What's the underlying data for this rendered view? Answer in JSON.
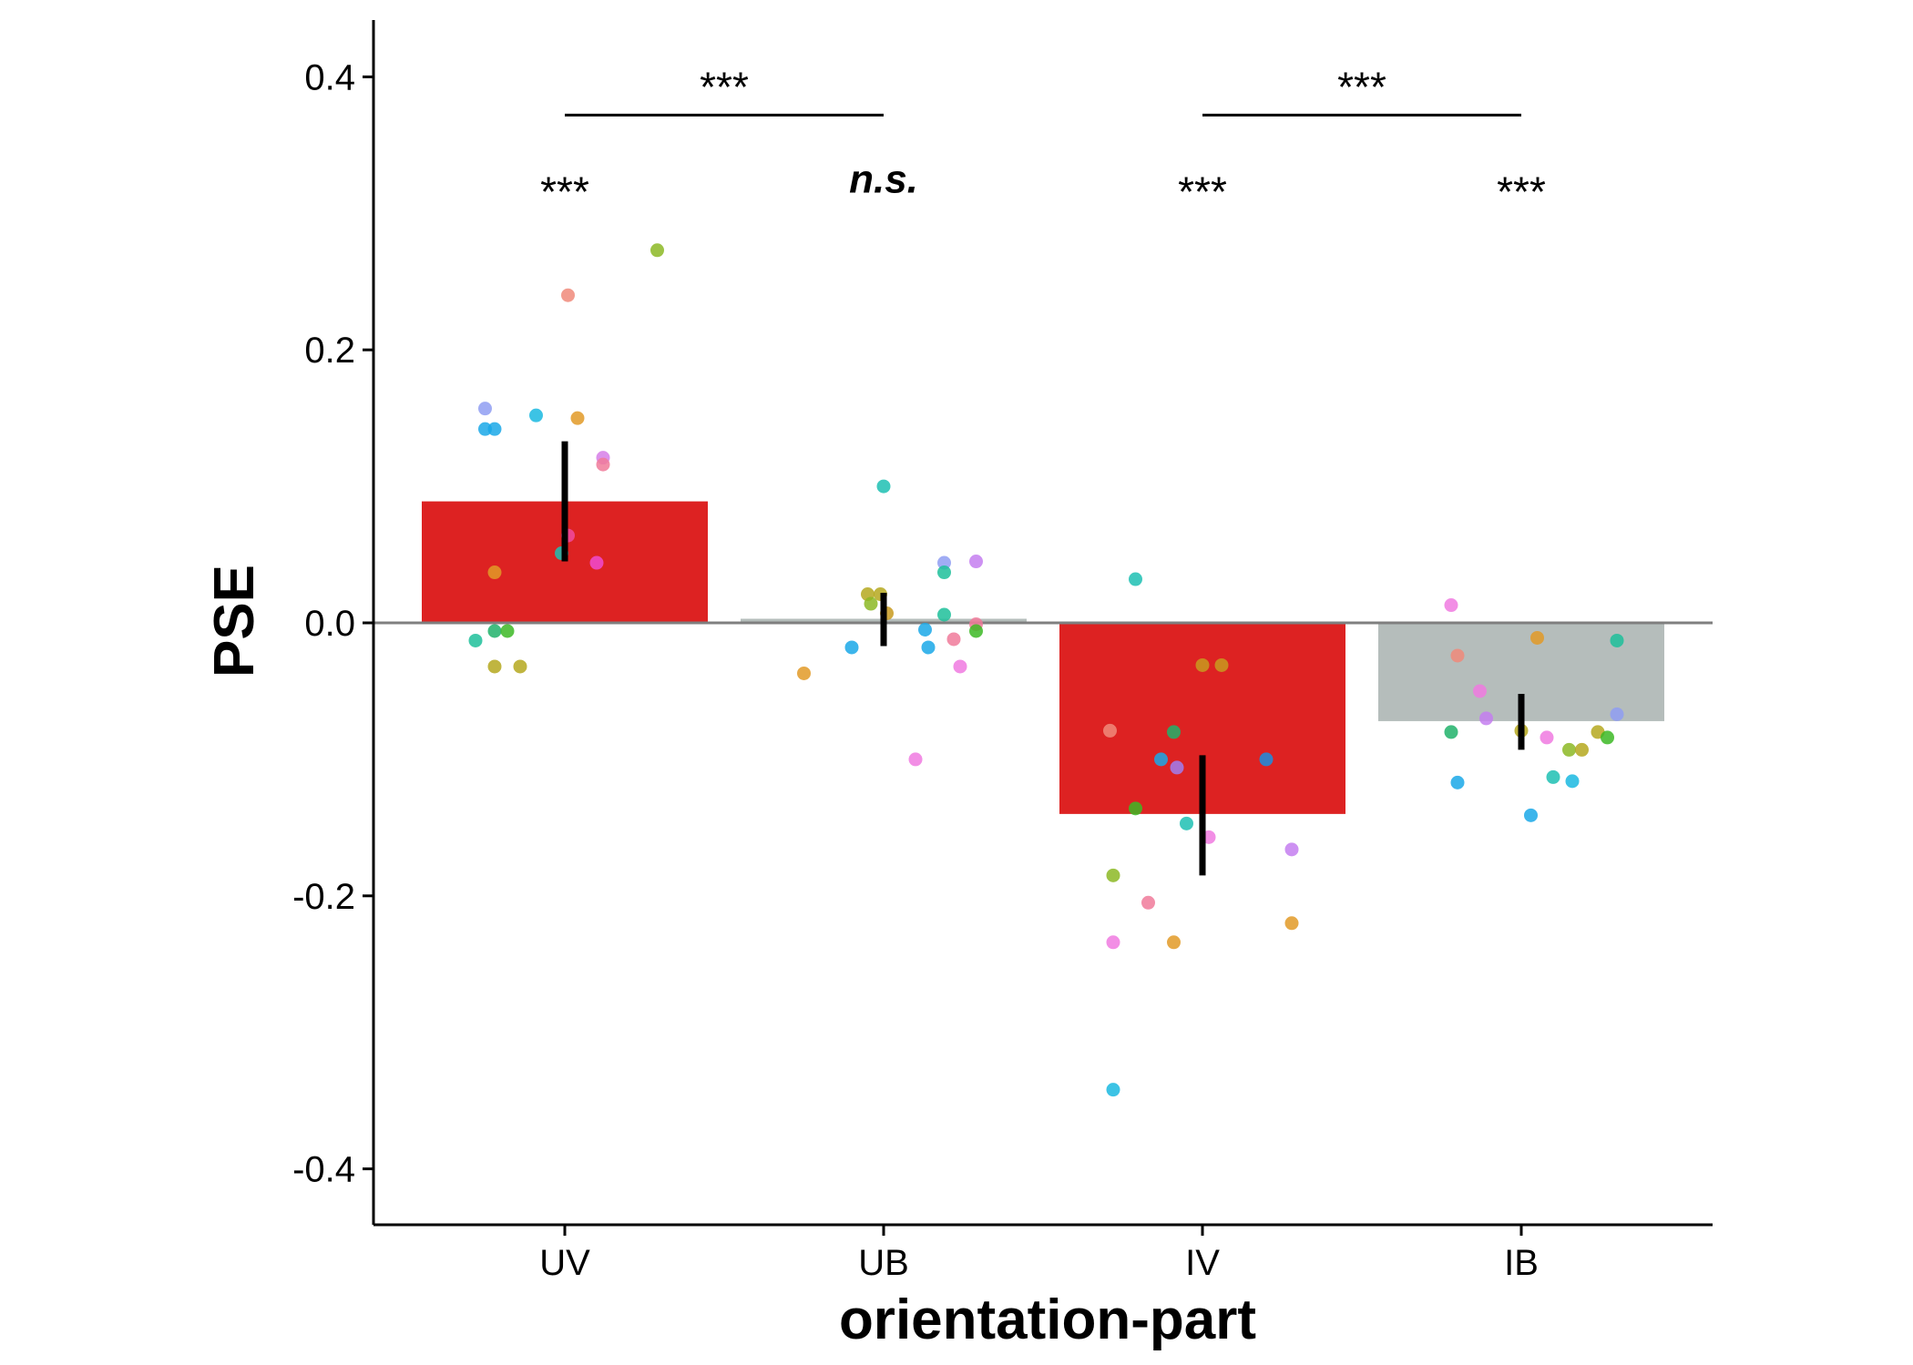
{
  "chart_data": {
    "type": "bar",
    "title": "",
    "xlabel": "orientation-part",
    "ylabel": "PSE",
    "ylim": [
      -0.44,
      0.44
    ],
    "yticks": [
      0.4,
      0.2,
      0.0,
      -0.2,
      -0.4
    ],
    "ytick_labels": [
      "0.4",
      "0.2",
      "0.0",
      "-0.2",
      "-0.4"
    ],
    "categories": [
      "UV",
      "UB",
      "IV",
      "IB"
    ],
    "values": [
      0.089,
      0.003,
      -0.14,
      -0.072
    ],
    "error_bars": [
      [
        0.045,
        0.133
      ],
      [
        -0.017,
        0.022
      ],
      [
        -0.185,
        -0.097
      ],
      [
        -0.093,
        -0.052
      ]
    ],
    "bar_colors": [
      "#dd2222",
      "#b5bdbb",
      "#dd2222",
      "#b5bdbb"
    ],
    "significance": [
      {
        "category": "UV",
        "label": "***",
        "y": 0.32
      },
      {
        "category": "UB",
        "label": "n.s.",
        "y": 0.33
      },
      {
        "category": "IV",
        "label": "***",
        "y": 0.32
      },
      {
        "category": "IB",
        "label": "***",
        "y": 0.32
      }
    ],
    "comparisons": [
      {
        "from": "UV",
        "to": "UB",
        "label": "***",
        "y": 0.372
      },
      {
        "from": "IV",
        "to": "IB",
        "label": "***",
        "y": 0.372
      }
    ],
    "points": [
      [
        {
          "x": -0.28,
          "y": -0.013,
          "c": "#1dbf9a"
        },
        {
          "x": -0.25,
          "y": 0.157,
          "c": "#8f9ef2"
        },
        {
          "x": -0.25,
          "y": 0.142,
          "c": "#1aa8e8"
        },
        {
          "x": -0.22,
          "y": 0.142,
          "c": "#1aa8e8"
        },
        {
          "x": -0.22,
          "y": 0.037,
          "c": "#e29a27"
        },
        {
          "x": -0.22,
          "y": -0.006,
          "c": "#20b26a"
        },
        {
          "x": -0.18,
          "y": -0.006,
          "c": "#3cb824"
        },
        {
          "x": -0.22,
          "y": -0.032,
          "c": "#b5a81f"
        },
        {
          "x": -0.14,
          "y": -0.032,
          "c": "#b5a81f"
        },
        {
          "x": -0.09,
          "y": 0.152,
          "c": "#1ab8e0"
        },
        {
          "x": -0.01,
          "y": 0.051,
          "c": "#1dbfb3"
        },
        {
          "x": 0.01,
          "y": 0.24,
          "c": "#f08a7a"
        },
        {
          "x": 0.01,
          "y": 0.064,
          "c": "#f04aa0"
        },
        {
          "x": 0.04,
          "y": 0.15,
          "c": "#e29a27"
        },
        {
          "x": 0.1,
          "y": 0.044,
          "c": "#f04ad0"
        },
        {
          "x": 0.12,
          "y": 0.121,
          "c": "#d67ee8"
        },
        {
          "x": 0.12,
          "y": 0.116,
          "c": "#f07a9a"
        },
        {
          "x": 0.29,
          "y": 0.273,
          "c": "#8cb824"
        }
      ],
      [
        {
          "x": -0.25,
          "y": -0.037,
          "c": "#e29a27"
        },
        {
          "x": -0.1,
          "y": -0.018,
          "c": "#1aa8e8"
        },
        {
          "x": -0.05,
          "y": 0.021,
          "c": "#b5a81f"
        },
        {
          "x": -0.04,
          "y": 0.014,
          "c": "#8cb824"
        },
        {
          "x": -0.01,
          "y": 0.021,
          "c": "#b5a81f"
        },
        {
          "x": 0.01,
          "y": 0.007,
          "c": "#c89a1f"
        },
        {
          "x": 0.0,
          "y": 0.1,
          "c": "#1dbfb3"
        },
        {
          "x": 0.1,
          "y": -0.1,
          "c": "#f07ae0"
        },
        {
          "x": 0.13,
          "y": -0.005,
          "c": "#1aa8e8"
        },
        {
          "x": 0.14,
          "y": -0.018,
          "c": "#1aa8e8"
        },
        {
          "x": 0.19,
          "y": 0.044,
          "c": "#8f9ef2"
        },
        {
          "x": 0.19,
          "y": 0.037,
          "c": "#1dbf9a"
        },
        {
          "x": 0.19,
          "y": 0.006,
          "c": "#1dbf9a"
        },
        {
          "x": 0.22,
          "y": -0.012,
          "c": "#f07a9a"
        },
        {
          "x": 0.24,
          "y": -0.032,
          "c": "#f07ae0"
        },
        {
          "x": 0.29,
          "y": 0.045,
          "c": "#c47ef0"
        },
        {
          "x": 0.29,
          "y": -0.001,
          "c": "#f07a9a"
        },
        {
          "x": 0.29,
          "y": -0.006,
          "c": "#3cb824"
        }
      ],
      [
        {
          "x": -0.29,
          "y": -0.079,
          "c": "#f08a7a"
        },
        {
          "x": -0.28,
          "y": -0.185,
          "c": "#8cb824"
        },
        {
          "x": -0.28,
          "y": -0.234,
          "c": "#f07ae0"
        },
        {
          "x": -0.28,
          "y": -0.342,
          "c": "#1ab8e0"
        },
        {
          "x": -0.21,
          "y": 0.032,
          "c": "#1dbfb3"
        },
        {
          "x": -0.21,
          "y": -0.136,
          "c": "#3cb824"
        },
        {
          "x": -0.17,
          "y": -0.205,
          "c": "#f07a9a"
        },
        {
          "x": -0.13,
          "y": -0.1,
          "c": "#1aa8e8"
        },
        {
          "x": -0.09,
          "y": -0.234,
          "c": "#e29a27"
        },
        {
          "x": -0.09,
          "y": -0.08,
          "c": "#20b26a"
        },
        {
          "x": -0.08,
          "y": -0.106,
          "c": "#a07ef0"
        },
        {
          "x": -0.05,
          "y": -0.147,
          "c": "#1dbfb3"
        },
        {
          "x": 0.0,
          "y": -0.031,
          "c": "#c89a1f"
        },
        {
          "x": 0.02,
          "y": -0.157,
          "c": "#f07ae0"
        },
        {
          "x": 0.06,
          "y": -0.031,
          "c": "#c89a1f"
        },
        {
          "x": 0.2,
          "y": -0.1,
          "c": "#1a8ee0"
        },
        {
          "x": 0.28,
          "y": -0.166,
          "c": "#c47ef0"
        },
        {
          "x": 0.28,
          "y": -0.22,
          "c": "#e29a27"
        }
      ],
      [
        {
          "x": -0.22,
          "y": -0.08,
          "c": "#20b26a"
        },
        {
          "x": -0.22,
          "y": 0.013,
          "c": "#f07ae0"
        },
        {
          "x": -0.2,
          "y": -0.024,
          "c": "#f08a7a"
        },
        {
          "x": -0.2,
          "y": -0.117,
          "c": "#1aa8e8"
        },
        {
          "x": -0.13,
          "y": -0.05,
          "c": "#f07ae0"
        },
        {
          "x": -0.11,
          "y": -0.07,
          "c": "#c47ef0"
        },
        {
          "x": 0.0,
          "y": -0.079,
          "c": "#b5a81f"
        },
        {
          "x": 0.03,
          "y": -0.141,
          "c": "#1aa8e8"
        },
        {
          "x": 0.05,
          "y": -0.011,
          "c": "#e29a27"
        },
        {
          "x": 0.08,
          "y": -0.084,
          "c": "#f07ae0"
        },
        {
          "x": 0.1,
          "y": -0.113,
          "c": "#1dbfb3"
        },
        {
          "x": 0.15,
          "y": -0.093,
          "c": "#8cb824"
        },
        {
          "x": 0.16,
          "y": -0.116,
          "c": "#1ab8e0"
        },
        {
          "x": 0.19,
          "y": -0.093,
          "c": "#b5a81f"
        },
        {
          "x": 0.24,
          "y": -0.08,
          "c": "#b5a81f"
        },
        {
          "x": 0.27,
          "y": -0.084,
          "c": "#3cb824"
        },
        {
          "x": 0.3,
          "y": -0.013,
          "c": "#1dbf9a"
        },
        {
          "x": 0.3,
          "y": -0.067,
          "c": "#8f9ef2"
        }
      ]
    ]
  }
}
